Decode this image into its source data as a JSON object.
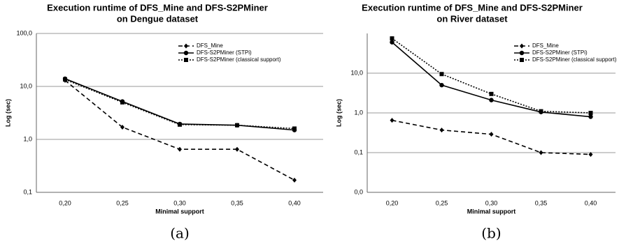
{
  "chart_data": [
    {
      "type": "line",
      "title": [
        "Execution runtime of DFS_Mine and DFS-S2PMiner",
        "on Dengue dataset"
      ],
      "x_label": "Minimal support",
      "y_label": "Log (sec)",
      "caption": "(a)",
      "categories": [
        "0,20",
        "0,25",
        "0,30",
        "0,35",
        "0,40"
      ],
      "log_scale": true,
      "grid": true,
      "legend": "upper right",
      "ylim": [
        0.1,
        100
      ],
      "yticks": [
        {
          "value": 0.1,
          "label": "0,1"
        },
        {
          "value": 1,
          "label": "1,0"
        },
        {
          "value": 10,
          "label": "10,0"
        },
        {
          "value": 100,
          "label": "100,0"
        }
      ],
      "series": [
        {
          "name": "DFS_Mine",
          "color": "#000000",
          "dash": "dashed",
          "marker": "diamond",
          "values": [
            13,
            1.7,
            0.65,
            0.65,
            0.17
          ]
        },
        {
          "name": "DFS-S2PMiner (STPi)",
          "color": "#000000",
          "dash": "solid",
          "marker": "circle",
          "values": [
            14,
            5.2,
            1.95,
            1.85,
            1.5
          ]
        },
        {
          "name": "DFS-S2PMiner (classical support)",
          "color": "#000000",
          "dash": "dotted",
          "marker": "square",
          "values": [
            13.5,
            5,
            1.9,
            1.85,
            1.6
          ]
        }
      ]
    },
    {
      "type": "line",
      "title": [
        "Execution runtime of DFS_Mine and DFS-S2PMiner",
        "on River dataset"
      ],
      "x_label": "Minimal support",
      "y_label": "Log (sec)",
      "caption": "(b)",
      "categories": [
        "0,20",
        "0,25",
        "0,30",
        "0,35",
        "0,40"
      ],
      "log_scale": true,
      "grid": true,
      "legend": "upper right",
      "ylim": [
        0.01,
        100
      ],
      "yticks": [
        {
          "value": 0.01,
          "label": "0,0"
        },
        {
          "value": 0.1,
          "label": "0,1"
        },
        {
          "value": 1,
          "label": "1,0"
        },
        {
          "value": 10,
          "label": "10,0"
        }
      ],
      "series": [
        {
          "name": "DFS_Mine",
          "color": "#000000",
          "dash": "dashed",
          "marker": "diamond",
          "values": [
            0.65,
            0.37,
            0.29,
            0.1,
            0.09
          ]
        },
        {
          "name": "DFS-S2PMiner (STPi)",
          "color": "#000000",
          "dash": "solid",
          "marker": "circle",
          "values": [
            60,
            5,
            2.1,
            1.05,
            0.8
          ]
        },
        {
          "name": "DFS-S2PMiner (classical support)",
          "color": "#000000",
          "dash": "dotted",
          "marker": "square",
          "values": [
            75,
            9.5,
            3,
            1.1,
            1.0
          ]
        }
      ]
    }
  ]
}
